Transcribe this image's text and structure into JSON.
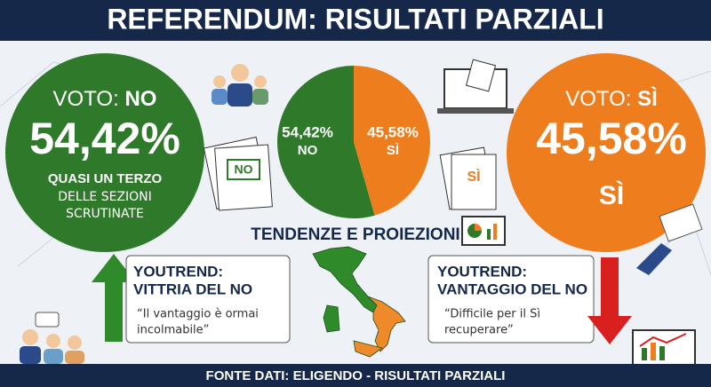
{
  "header": {
    "title": "REFERENDUM: RISULTATI PARZIALI"
  },
  "no_card": {
    "label_prefix": "VOTO:",
    "label_choice": "NO",
    "percent": "54,42%",
    "note_lines": [
      "QUASI UN TERZO",
      "DELLE SEZIONI",
      "SCRUTINATE"
    ],
    "document_text": "NO"
  },
  "yes_card": {
    "label_prefix": "VOTO:",
    "label_choice": "SÌ",
    "percent": "45,58%",
    "choice": "SÌ",
    "document_text": "SÌ"
  },
  "pie": {
    "slices": [
      {
        "name": "NO",
        "value": 54.42,
        "label": "54,42%",
        "color": "#2f7a2a"
      },
      {
        "name": "SÌ",
        "value": 45.58,
        "label": "45,58%",
        "color": "#ee7d1e"
      }
    ]
  },
  "section_title": "TENDENZE E PROIEZIONI",
  "left_box": {
    "title_lines": [
      "YOUTREND:",
      "VITTRIA DEL NO"
    ],
    "quote_lines": [
      "“Il vantaggio è ormai",
      "incolmabile”"
    ]
  },
  "right_box": {
    "title_lines": [
      "YOUTREND:",
      "VANTAGGIO DEL NO"
    ],
    "quote_lines": [
      "“Difficile per il Sì",
      "recuperare”"
    ]
  },
  "footer": "FONTE DATI: ELIGENDO - RISULTATI PARZIALI"
}
